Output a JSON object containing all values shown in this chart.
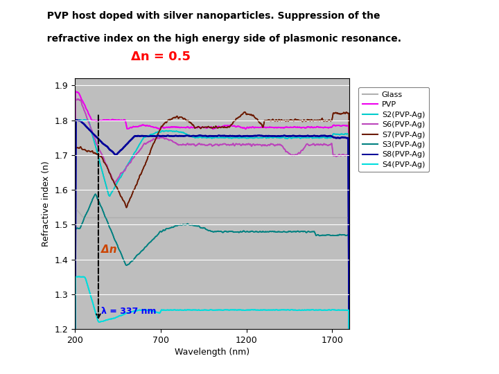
{
  "title_line1": "  PVP host doped with silver nanoparticles. Suppression of the",
  "title_line2": "  refractive index on the high energy side of plasmonic resonance.",
  "subtitle": "Δn = 0.5",
  "xlabel": "Wavelength (nm)",
  "ylabel": "Refractive index (n)",
  "xlim": [
    200,
    1800
  ],
  "ylim": [
    1.2,
    1.92
  ],
  "xticks": [
    200,
    700,
    1200,
    1700
  ],
  "yticks": [
    1.2,
    1.3,
    1.4,
    1.5,
    1.6,
    1.7,
    1.8,
    1.9
  ],
  "bg_color": "#bebebe",
  "lambda_label": "λ = 337 nm",
  "delta_n_label": "Δn",
  "legend_labels": [
    "Glass",
    "PVP",
    "S2(PVP-Ag)",
    "S6(PVP-Ag)",
    "S7(PVP-Ag)",
    "S3(PVP-Ag)",
    "S8(PVP-Ag)",
    "S4(PVP-Ag)"
  ],
  "legend_colors": [
    "#b0b0b0",
    "#ee00ee",
    "#00cccc",
    "#bb44bb",
    "#6b1a00",
    "#008080",
    "#000099",
    "#00dddd"
  ],
  "fig_width": 7.2,
  "fig_height": 5.4,
  "dpi": 100
}
